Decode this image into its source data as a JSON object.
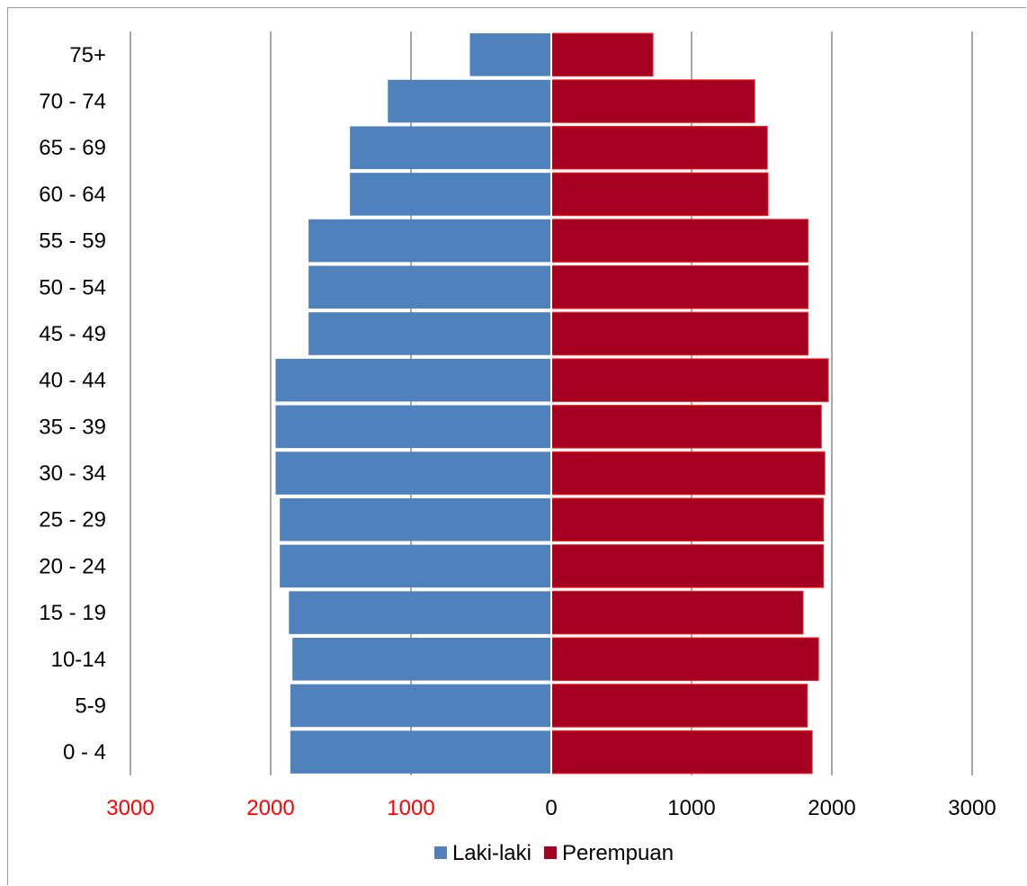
{
  "chart_data": {
    "type": "bar",
    "orientation": "horizontal",
    "layout": "population-pyramid",
    "categories": [
      "75+",
      "70 - 74",
      "65 - 69",
      "60 - 64",
      "55 - 59",
      "50 - 54",
      "45 - 49",
      "40 - 44",
      "35 - 39",
      "30 - 34",
      "25 - 29",
      "20 - 24",
      "15 - 19",
      "10-14",
      "5-9",
      "0 - 4"
    ],
    "series": [
      {
        "name": "Laki-laki",
        "color": "#4f81bd",
        "side": "left",
        "values": [
          580,
          1165,
          1435,
          1435,
          1730,
          1730,
          1730,
          1965,
          1965,
          1965,
          1935,
          1935,
          1870,
          1845,
          1860,
          1860
        ]
      },
      {
        "name": "Perempuan",
        "color": "#a50021",
        "side": "right",
        "values": [
          725,
          1450,
          1540,
          1545,
          1830,
          1830,
          1830,
          1975,
          1925,
          1950,
          1940,
          1940,
          1795,
          1905,
          1825,
          1860
        ]
      }
    ],
    "xlim": [
      -3000,
      3000
    ],
    "x_ticks": [
      {
        "value": -3000,
        "label": "3000",
        "color": "#ff0000"
      },
      {
        "value": -2000,
        "label": "2000",
        "color": "#ff0000"
      },
      {
        "value": -1000,
        "label": "1000",
        "color": "#ff0000"
      },
      {
        "value": 0,
        "label": "0",
        "color": "#000000"
      },
      {
        "value": 1000,
        "label": "1000",
        "color": "#000000"
      },
      {
        "value": 2000,
        "label": "2000",
        "color": "#000000"
      },
      {
        "value": 3000,
        "label": "3000",
        "color": "#000000"
      }
    ],
    "grid": "vertical",
    "legend_position": "bottom",
    "title": "",
    "xlabel": "",
    "ylabel": ""
  }
}
